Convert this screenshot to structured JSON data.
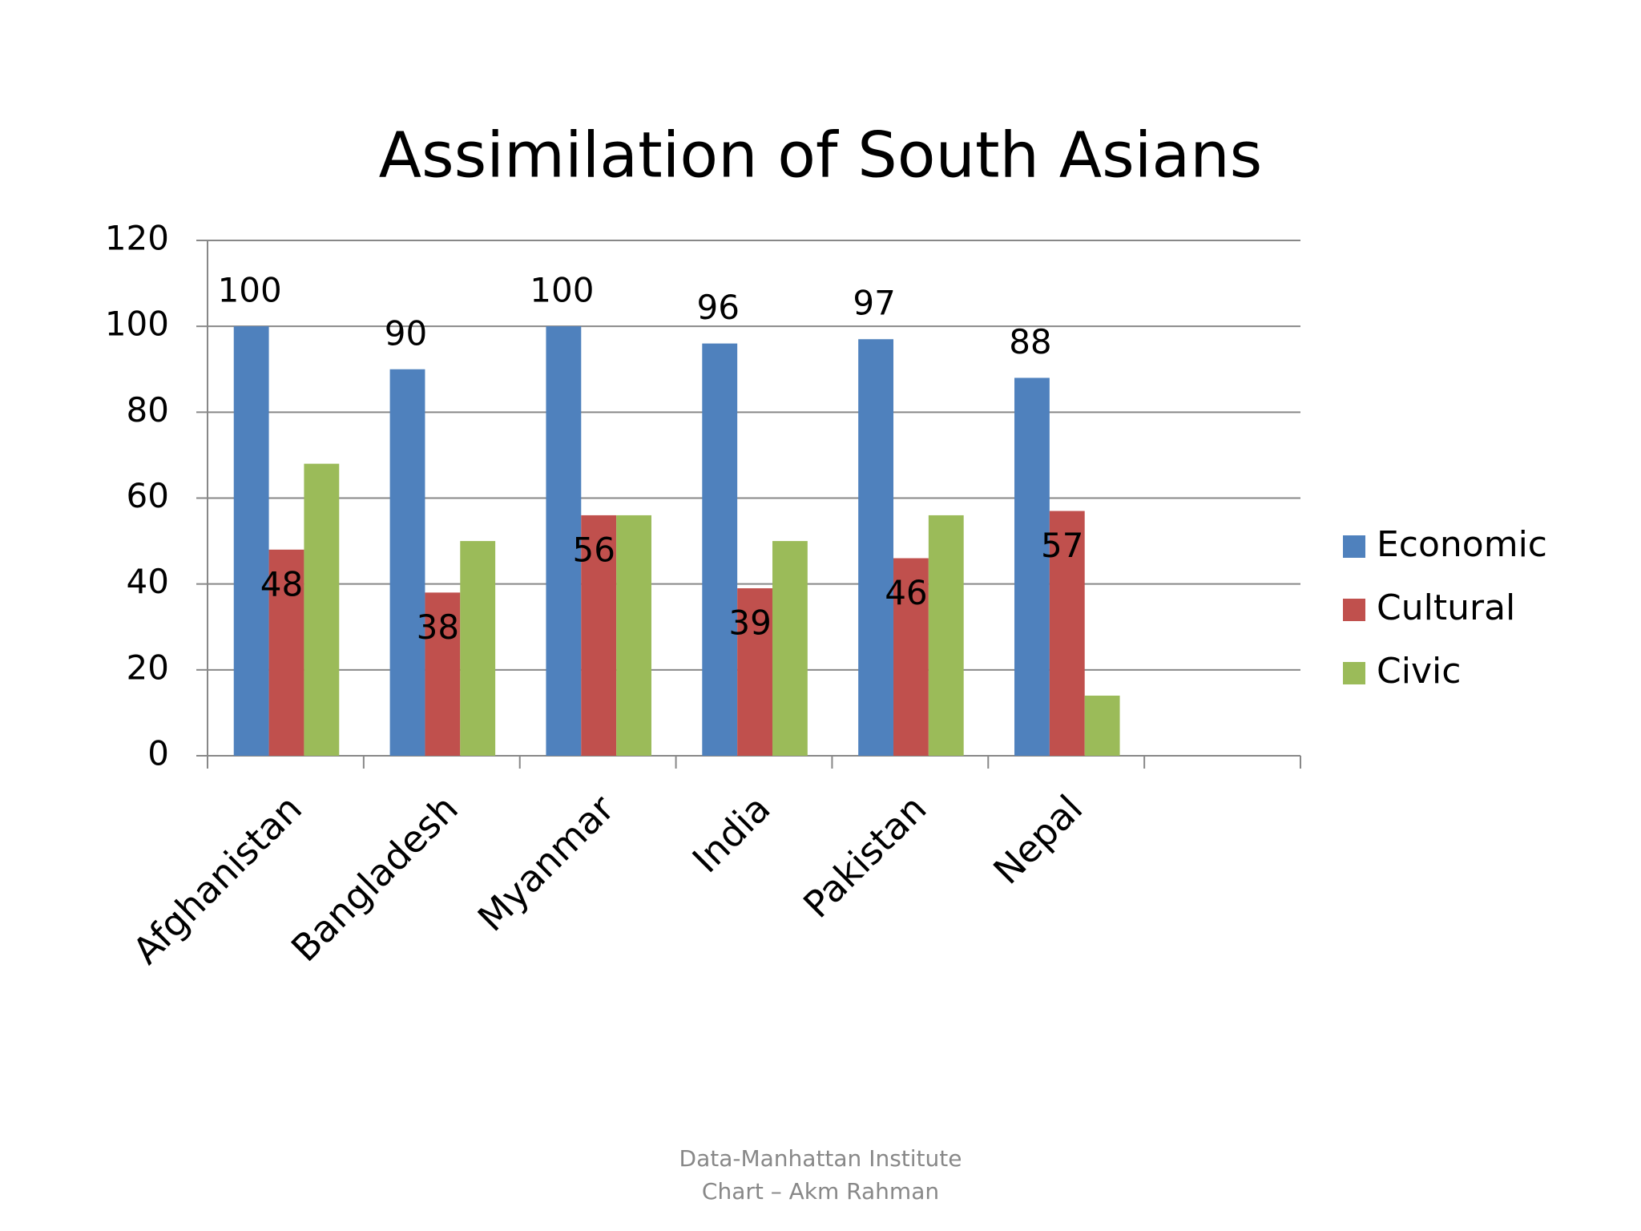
{
  "chart_data": {
    "type": "bar",
    "title": "Assimilation of South Asians",
    "categories": [
      "Afghanistan",
      "Bangladesh",
      "Myanmar",
      "India",
      "Pakistan",
      "Nepal",
      null
    ],
    "series": [
      {
        "name": "Economic",
        "color": "#4f81bd",
        "values": [
          100,
          90,
          100,
          96,
          97,
          88,
          null
        ],
        "data_labels": true
      },
      {
        "name": "Cultural",
        "color": "#c0504d",
        "values": [
          48,
          38,
          56,
          39,
          46,
          57,
          null
        ],
        "data_labels": true
      },
      {
        "name": "Civic",
        "color": "#9bbb59",
        "values": [
          68,
          50,
          56,
          50,
          56,
          14,
          null
        ],
        "data_labels": false
      }
    ],
    "ylim": [
      0,
      120
    ],
    "yticks": [
      0,
      20,
      40,
      60,
      80,
      100,
      120
    ],
    "grid": true,
    "legend": "right",
    "footer": [
      "Data-Manhattan Institute",
      "Chart – Akm Rahman"
    ]
  }
}
